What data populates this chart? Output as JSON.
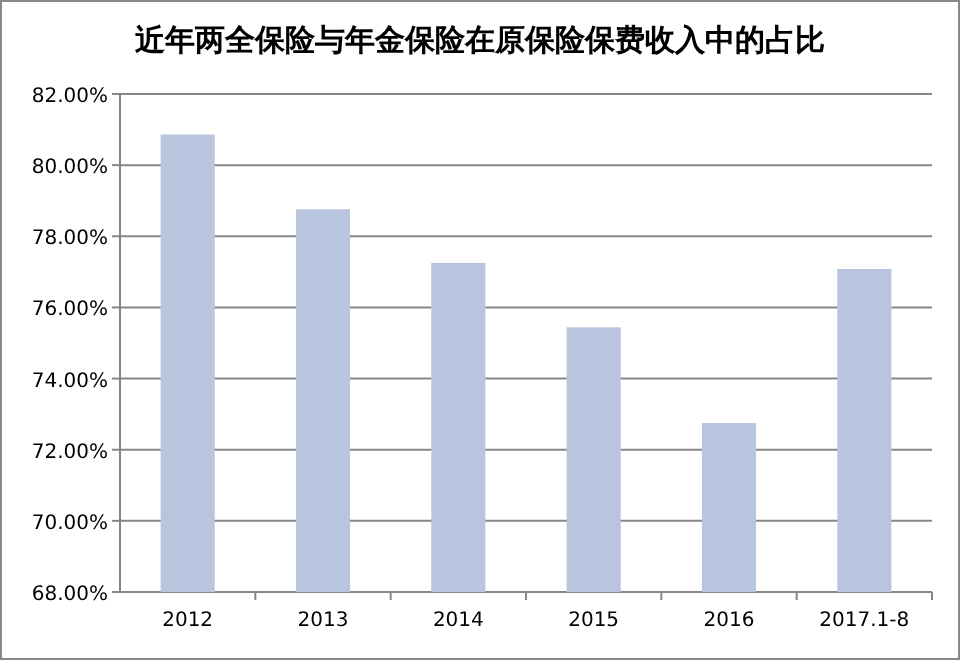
{
  "chart_data": {
    "type": "bar",
    "title": "近年两全保险与年金保险在原保险保费收入中的占比",
    "categories": [
      "2012",
      "2013",
      "2014",
      "2015",
      "2016",
      "2017.1-8"
    ],
    "values": [
      80.86,
      78.76,
      77.25,
      75.44,
      72.75,
      77.08
    ],
    "color": "#b9c5de",
    "ylim": [
      68,
      82
    ],
    "yticks": [
      {
        "value": 68,
        "label": "68.00%"
      },
      {
        "value": 70,
        "label": "70.00%"
      },
      {
        "value": 72,
        "label": "72.00%"
      },
      {
        "value": 74,
        "label": "74.00%"
      },
      {
        "value": 76,
        "label": "76.00%"
      },
      {
        "value": 78,
        "label": "78.00%"
      },
      {
        "value": 80,
        "label": "80.00%"
      },
      {
        "value": 82,
        "label": "82.00%"
      }
    ],
    "grid": "y"
  }
}
